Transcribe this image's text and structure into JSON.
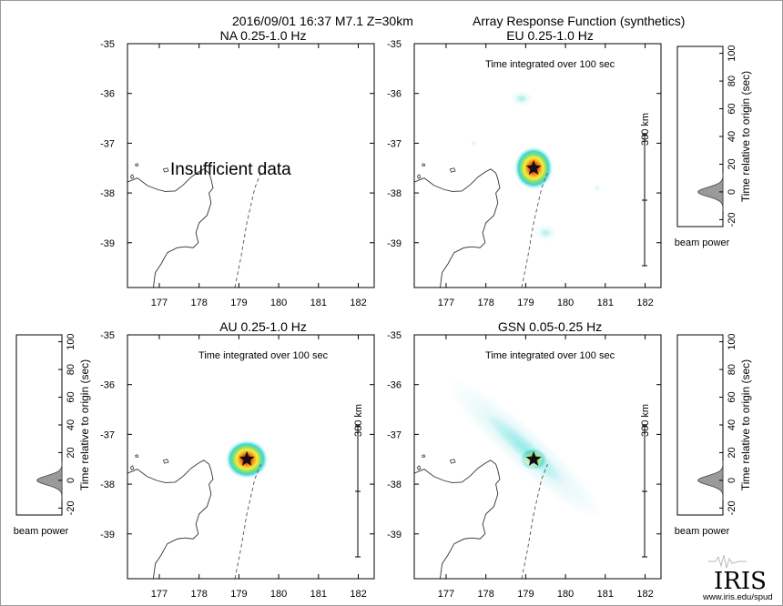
{
  "header": {
    "event": "2016/09/01 16:37  M7.1  Z=30km",
    "title": "Array Response Function (synthetics)"
  },
  "chart_data": [
    {
      "type": "heatmap",
      "title": "NA  0.25-1.0 Hz",
      "note": "Insufficient data",
      "x_ticks": [
        "177",
        "178",
        "179",
        "180",
        "181",
        "182"
      ],
      "y_ticks": [
        "-35",
        "-36",
        "-37",
        "-38",
        "-39"
      ],
      "xlim": [
        176.2,
        182.4
      ],
      "ylim": [
        -39.9,
        -35
      ],
      "epicenter": null,
      "blobs": []
    },
    {
      "type": "heatmap",
      "title": "EU  0.25-1.0 Hz",
      "note": "Time integrated over 100 sec",
      "scale_label": "300 km",
      "x_ticks": [
        "177",
        "178",
        "179",
        "180",
        "181",
        "182"
      ],
      "y_ticks": [
        "-35",
        "-36",
        "-37",
        "-38",
        "-39"
      ],
      "xlim": [
        176.2,
        182.4
      ],
      "ylim": [
        -39.9,
        -35
      ],
      "epicenter": {
        "lon": 179.2,
        "lat": -37.5
      },
      "blobs": [
        {
          "lon": 179.2,
          "lat": -37.5,
          "rx": 0.5,
          "ry": 0.55,
          "power": 1.0,
          "rot": 0
        },
        {
          "lon": 178.9,
          "lat": -36.1,
          "rx": 0.28,
          "ry": 0.2,
          "power": 0.18,
          "rot": 0
        },
        {
          "lon": 179.5,
          "lat": -38.8,
          "rx": 0.3,
          "ry": 0.22,
          "power": 0.15,
          "rot": 0
        },
        {
          "lon": 180.8,
          "lat": -37.9,
          "rx": 0.1,
          "ry": 0.1,
          "power": 0.12,
          "rot": 0
        },
        {
          "lon": 177.7,
          "lat": -37.0,
          "rx": 0.1,
          "ry": 0.1,
          "power": 0.1,
          "rot": 0
        }
      ]
    },
    {
      "type": "heatmap",
      "title": "AU  0.25-1.0 Hz",
      "note": "Time integrated over 100 sec",
      "scale_label": "300 km",
      "x_ticks": [
        "177",
        "178",
        "179",
        "180",
        "181",
        "182"
      ],
      "y_ticks": [
        "-35",
        "-36",
        "-37",
        "-38",
        "-39"
      ],
      "xlim": [
        176.2,
        182.4
      ],
      "ylim": [
        -39.9,
        -35
      ],
      "epicenter": {
        "lon": 179.2,
        "lat": -37.5
      },
      "blobs": [
        {
          "lon": 179.2,
          "lat": -37.5,
          "rx": 0.55,
          "ry": 0.5,
          "power": 1.0,
          "rot": 0
        }
      ]
    },
    {
      "type": "heatmap",
      "title": "GSN  0.05-0.25 Hz",
      "note": "Time integrated over 100 sec",
      "scale_label": "300 km",
      "x_ticks": [
        "177",
        "178",
        "179",
        "180",
        "181",
        "182"
      ],
      "y_ticks": [
        "-35",
        "-36",
        "-37",
        "-38",
        "-39"
      ],
      "xlim": [
        176.2,
        182.4
      ],
      "ylim": [
        -39.9,
        -35
      ],
      "epicenter": {
        "lon": 179.2,
        "lat": -37.5
      },
      "blobs": [
        {
          "lon": 179.2,
          "lat": -37.5,
          "rx": 0.35,
          "ry": 0.28,
          "power": 1.0,
          "rot": 0
        },
        {
          "lon": 179.0,
          "lat": -37.3,
          "rx": 2.6,
          "ry": 0.5,
          "power": 0.22,
          "rot": 42
        }
      ]
    }
  ],
  "beam_panels": [
    {
      "ylabel": "Time relative to origin (sec)",
      "xlabel": "beam power",
      "y_ticks": [
        "100",
        "80",
        "60",
        "40",
        "20",
        "0",
        "-20"
      ],
      "ylim": [
        -25,
        105
      ],
      "peak_time": 0,
      "peak_power": 0.55
    },
    {
      "ylabel": "Time relative to origin (sec)",
      "xlabel": "beam power",
      "y_ticks": [
        "100",
        "80",
        "60",
        "40",
        "20",
        "0",
        "-20"
      ],
      "ylim": [
        -25,
        105
      ],
      "peak_time": 0,
      "peak_power": 0.55
    },
    {
      "ylabel": "Time relative to origin (sec)",
      "xlabel": "beam power",
      "y_ticks": [
        "100",
        "80",
        "60",
        "40",
        "20",
        "0",
        "-20"
      ],
      "ylim": [
        -25,
        105
      ],
      "peak_time": 0,
      "peak_power": 0.55
    }
  ],
  "logo": {
    "name": "IRIS",
    "url": "www.iris.edu/spud"
  },
  "colors": {
    "heat_low": "#dff6f8",
    "heat_cyan": "#38d8d4",
    "heat_green": "#8edc6a",
    "heat_yellow": "#f6f03c",
    "heat_orange": "#f59a18",
    "heat_red": "#e8241a",
    "star": "#111111",
    "beam_fill": "#9a9a9a"
  }
}
